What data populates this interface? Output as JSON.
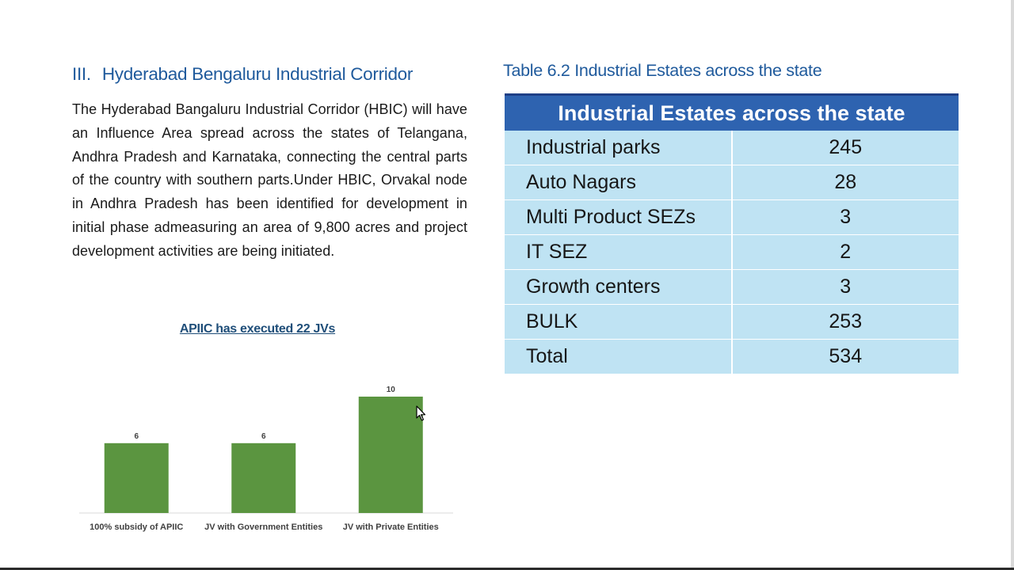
{
  "hbic": {
    "section_number": "III.",
    "title": "Hyderabad Bengaluru Industrial Corridor",
    "paragraph": "The Hyderabad Bangaluru Industrial Corridor (HBIC) will have an Influence Area spread across the states of Telangana, Andhra Pradesh and Karnataka, connecting the central parts of the country with southern parts.Under HBIC, Orvakal node in Andhra Pradesh has been identified for development in initial phase admeasuring an area of 9,800 acres and project development activities are being initiated."
  },
  "table": {
    "caption": "Table 6.2  Industrial Estates across the state",
    "header": "Industrial Estates across the state",
    "rows": [
      {
        "name": "Industrial parks",
        "value": "245"
      },
      {
        "name": "Auto Nagars",
        "value": "28"
      },
      {
        "name": "Multi Product SEZs",
        "value": "3"
      },
      {
        "name": "IT SEZ",
        "value": "2"
      },
      {
        "name": "Growth centers",
        "value": "3"
      },
      {
        "name": "BULK",
        "value": "253"
      },
      {
        "name": "Total",
        "value": "534"
      }
    ]
  },
  "colors": {
    "heading": "#1f5a9c",
    "table_header": "#2e63b0",
    "table_cell": "#bfe3f3",
    "bar": "#5b9540"
  },
  "chart_data": {
    "type": "bar",
    "title": "APIIC has executed 22 JVs",
    "categories": [
      "100% subsidy of APIIC",
      "JV with Government Entities",
      "JV with Private Entities"
    ],
    "values": [
      6,
      6,
      10
    ],
    "xlabel": "",
    "ylabel": "",
    "ylim": [
      0,
      10
    ],
    "grid": false,
    "legend": "none"
  }
}
